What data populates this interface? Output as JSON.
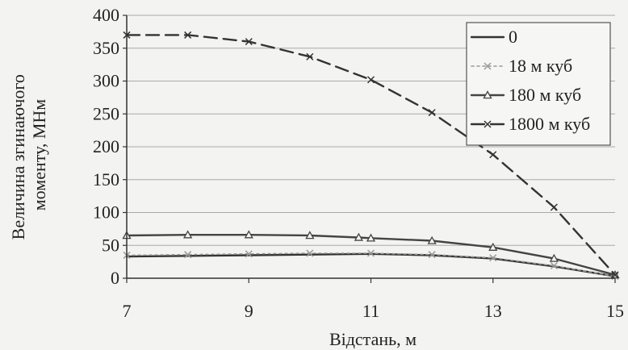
{
  "chart_data": {
    "type": "line",
    "title": "",
    "xlabel": "Відстань, м",
    "ylabel_lines": [
      "Величина згинаючого",
      "моменту, МНм"
    ],
    "xlim": [
      7,
      15
    ],
    "ylim": [
      0,
      400
    ],
    "x_ticks": [
      7,
      9,
      11,
      13,
      15
    ],
    "y_ticks": [
      0,
      50,
      100,
      150,
      200,
      250,
      300,
      350,
      400
    ],
    "grid": "horizontal",
    "legend_position": "top-right",
    "series": [
      {
        "name": "0",
        "color": "#333333",
        "style": "solid",
        "marker": "none",
        "x": [
          7,
          8,
          9,
          10,
          11,
          12,
          13,
          14,
          15
        ],
        "values": [
          33,
          34,
          35,
          36,
          37,
          35,
          30,
          18,
          3
        ]
      },
      {
        "name": "18 м куб",
        "color": "#999999",
        "style": "dotted",
        "marker": "x",
        "x": [
          7,
          8,
          9,
          10,
          11,
          12,
          13,
          14,
          15
        ],
        "values": [
          35,
          36,
          37,
          38,
          38,
          36,
          31,
          19,
          3
        ]
      },
      {
        "name": "180 м куб",
        "color": "#444444",
        "style": "solid",
        "marker": "triangle",
        "x": [
          7,
          8,
          9,
          10,
          10.8,
          11,
          12,
          13,
          14,
          15
        ],
        "values": [
          65,
          66,
          66,
          65,
          62,
          61,
          57,
          47,
          30,
          5
        ]
      },
      {
        "name": "1800 м куб",
        "color": "#333333",
        "style": "dashed",
        "marker": "x",
        "x": [
          7,
          8,
          9,
          10,
          11,
          12,
          13,
          14,
          15
        ],
        "values": [
          370,
          370,
          360,
          337,
          302,
          252,
          188,
          108,
          5
        ]
      }
    ]
  }
}
